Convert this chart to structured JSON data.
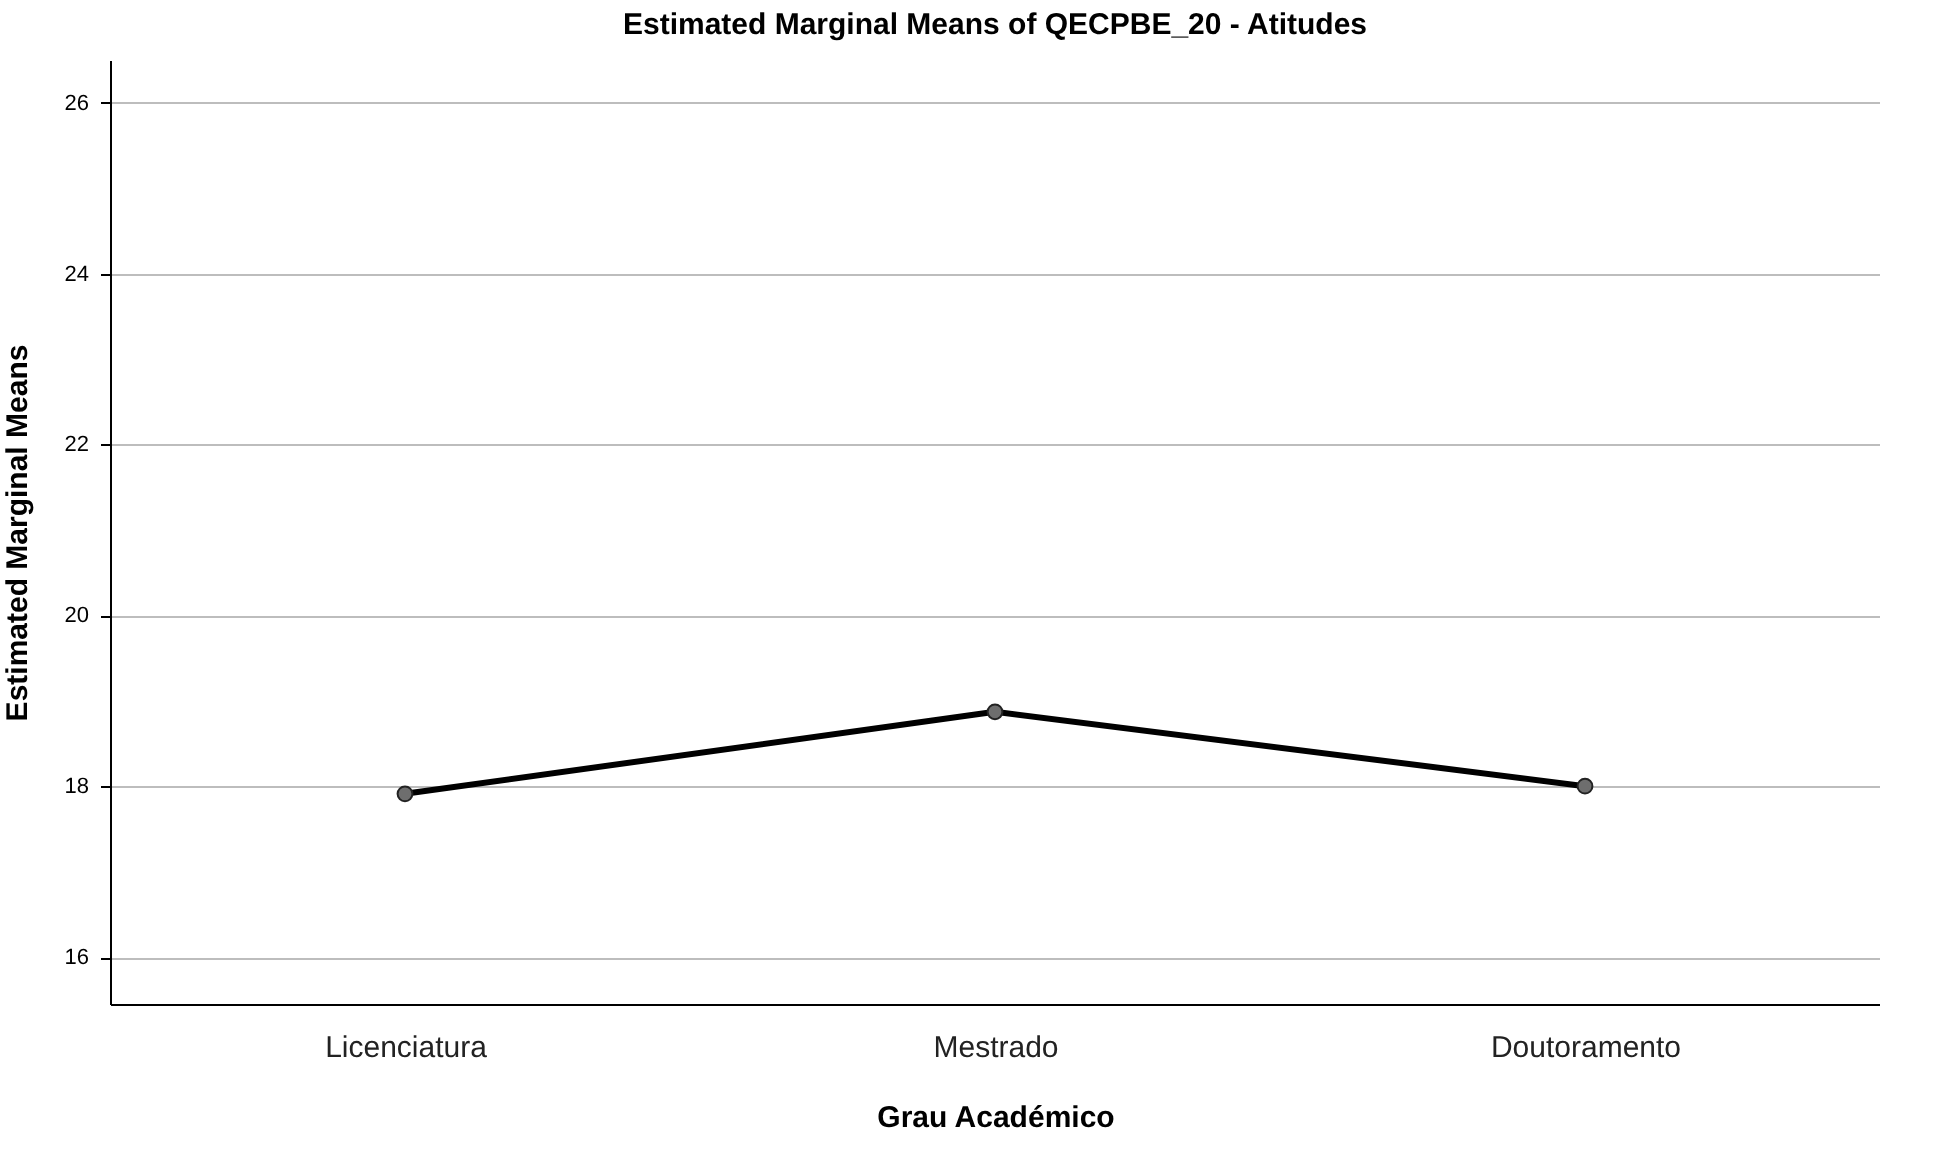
{
  "chart_data": {
    "type": "line",
    "title": "Estimated Marginal Means of QECPBE_20 - Atitudes",
    "xlabel": "Grau Académico",
    "ylabel": "Estimated Marginal Means",
    "categories": [
      "Licenciatura",
      "Mestrado",
      "Doutoramento"
    ],
    "series": [
      {
        "color": "#000000",
        "values": [
          17.91,
          18.87,
          18.0
        ]
      }
    ],
    "ylim": [
      15.45,
      26.5
    ],
    "yticks": [
      16,
      18,
      20,
      22,
      24,
      26
    ],
    "grid": "y",
    "marker": "circle",
    "line_style": "solid",
    "legend": false
  }
}
